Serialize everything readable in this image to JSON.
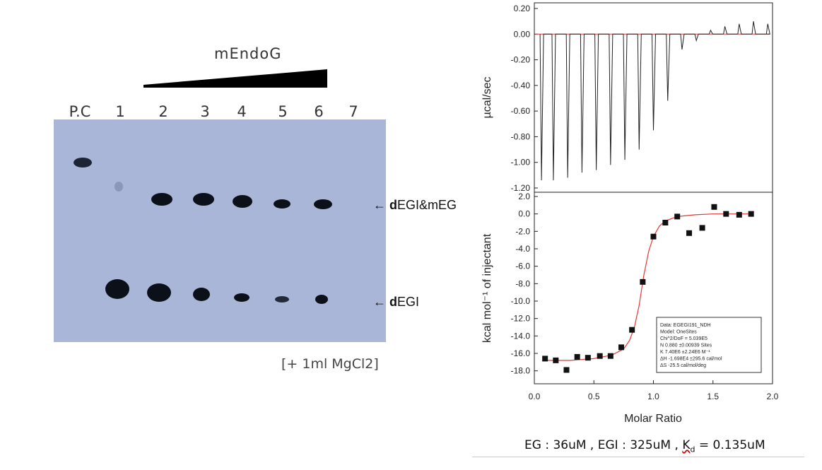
{
  "gel": {
    "title": "mEndoG",
    "lanes": [
      "P.C",
      "1",
      "2",
      "3",
      "4",
      "5",
      "6",
      "7"
    ],
    "labels": {
      "upper": {
        "arrow": "← ",
        "bold": "d",
        "rest": "EGI&mEG"
      },
      "lower": {
        "arrow": "← ",
        "bold": "d",
        "rest": "EGI"
      }
    },
    "note": "[+ 1ml MgCl2]"
  },
  "chart_data": [
    {
      "type": "line",
      "panel": "top",
      "title": "",
      "xlabel": "",
      "ylabel": "µcal/sec",
      "ylim": [
        -1.2,
        0.2
      ],
      "yticks": [
        "0.20",
        "0.00",
        "-0.20",
        "-0.40",
        "-0.60",
        "-0.80",
        "-1.00",
        "-1.20"
      ],
      "series": [
        {
          "name": "injection peaks",
          "x": [
            0.03,
            0.08,
            0.14,
            0.2,
            0.26,
            0.32,
            0.38,
            0.44,
            0.5,
            0.56,
            0.62,
            0.68,
            0.74,
            0.8,
            0.86,
            0.92,
            0.98
          ],
          "values": [
            -1.14,
            -1.14,
            -1.12,
            -1.08,
            -1.06,
            -1.02,
            -0.98,
            -0.9,
            -0.75,
            -0.52,
            -0.12,
            -0.05,
            0.03,
            0.06,
            0.08,
            0.1,
            0.08
          ]
        }
      ]
    },
    {
      "type": "scatter",
      "panel": "bottom",
      "title": "",
      "xlabel": "Molar Ratio",
      "ylabel": "kcal mol⁻¹ of injectant",
      "xlim": [
        0.0,
        2.0
      ],
      "ylim": [
        -19.0,
        2.0
      ],
      "xticks": [
        "0.0",
        "0.5",
        "1.0",
        "1.5",
        "2.0"
      ],
      "yticks": [
        "2.0",
        "0.0",
        "-2.0",
        "-4.0",
        "-6.0",
        "-8.0",
        "-10.0",
        "-12.0",
        "-14.0",
        "-16.0",
        "-18.0"
      ],
      "series": [
        {
          "name": "data",
          "x": [
            0.09,
            0.18,
            0.27,
            0.36,
            0.45,
            0.55,
            0.64,
            0.73,
            0.82,
            0.91,
            1.0,
            1.1,
            1.2,
            1.3,
            1.41,
            1.51,
            1.61,
            1.72,
            1.82
          ],
          "values": [
            -16.6,
            -16.8,
            -17.9,
            -16.4,
            -16.5,
            -16.3,
            -16.3,
            -15.3,
            -13.3,
            -7.8,
            -2.6,
            -1.0,
            -0.3,
            -2.2,
            -1.6,
            0.8,
            0.0,
            -0.1,
            0.0
          ]
        },
        {
          "name": "OneSites fit",
          "x": [
            0.08,
            0.3,
            0.5,
            0.65,
            0.75,
            0.8,
            0.84,
            0.88,
            0.9,
            0.92,
            0.96,
            1.0,
            1.05,
            1.1,
            1.2,
            1.35,
            1.5,
            1.84
          ],
          "values": [
            -16.8,
            -16.8,
            -16.6,
            -16.2,
            -15.5,
            -14.5,
            -13.0,
            -10.5,
            -8.7,
            -7.0,
            -4.3,
            -2.6,
            -1.4,
            -0.8,
            -0.3,
            -0.1,
            0.0,
            0.0
          ]
        }
      ],
      "fit_report": [
        "Data: EGEGI191_NDH",
        "Model: OneSites",
        "Chi^2/DoF = 5.039E5",
        "N     0.880   ±0.00939 Sites",
        "K     7.40E6  ±2.24E6 M⁻¹",
        "ΔH    -1.698E4      ±295.6 cal/mol",
        "ΔS    -25.5 cal/mol/deg"
      ]
    }
  ],
  "footer": {
    "prefix": "EG : 36uM , EGI : 325uM , ",
    "k": "K",
    "sub": "d",
    "suffix": " = 0.135uM"
  },
  "colors": {
    "gel_bg": "#a9b6d8",
    "band": "#0c1018",
    "fit_line": "#e53935",
    "marker": "#111111"
  }
}
